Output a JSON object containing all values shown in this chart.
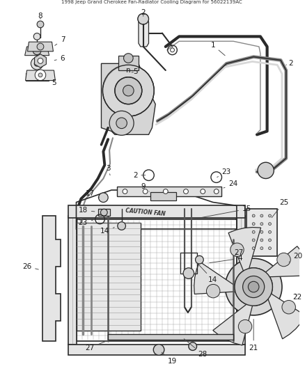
{
  "title": "1998 Jeep Grand Cherokee Fan-Radiator Cooling Diagram for 56022139AC",
  "background_color": "#ffffff",
  "line_color": "#2a2a2a",
  "label_color": "#1a1a1a",
  "fig_width": 4.38,
  "fig_height": 5.33,
  "dpi": 100,
  "label_fontsize": 7.5,
  "title_fontsize": 5.0
}
